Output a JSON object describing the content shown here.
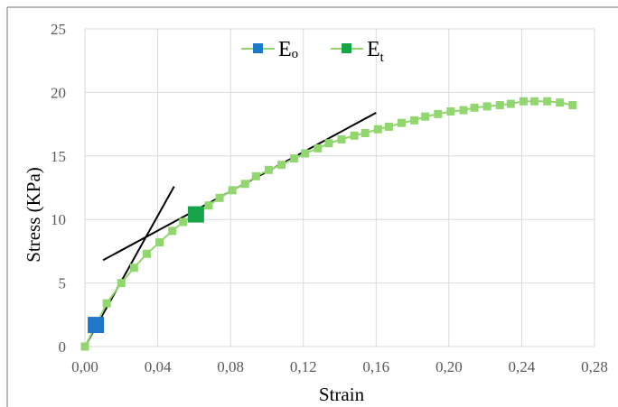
{
  "chart_data": {
    "type": "scatter",
    "xlabel": "Strain",
    "ylabel": "Stress (KPa)",
    "xlim": [
      0,
      0.28
    ],
    "ylim": [
      0,
      25
    ],
    "x_ticks": [
      "0,00",
      "0,04",
      "0,08",
      "0,12",
      "0,16",
      "0,20",
      "0,24",
      "0,28"
    ],
    "y_ticks": [
      "0",
      "5",
      "10",
      "15",
      "20",
      "25"
    ],
    "grid": true,
    "legend_position": "top-center",
    "series": [
      {
        "name_main": "E",
        "name_sub": "o",
        "color": "#1f77c8",
        "points": [
          [
            0.006,
            1.7
          ]
        ]
      },
      {
        "name_main": "E",
        "name_sub": "t",
        "color": "#17a34a",
        "points": [
          [
            0.061,
            10.4
          ]
        ]
      }
    ],
    "curve": {
      "color": "#92d66f",
      "points": [
        [
          0.0,
          0.0
        ],
        [
          0.012,
          3.4
        ],
        [
          0.02,
          5.0
        ],
        [
          0.027,
          6.2
        ],
        [
          0.034,
          7.3
        ],
        [
          0.041,
          8.2
        ],
        [
          0.048,
          9.1
        ],
        [
          0.054,
          9.8
        ],
        [
          0.061,
          10.4
        ],
        [
          0.068,
          11.1
        ],
        [
          0.074,
          11.7
        ],
        [
          0.081,
          12.3
        ],
        [
          0.088,
          12.8
        ],
        [
          0.094,
          13.4
        ],
        [
          0.101,
          13.9
        ],
        [
          0.108,
          14.3
        ],
        [
          0.115,
          14.8
        ],
        [
          0.121,
          15.2
        ],
        [
          0.128,
          15.6
        ],
        [
          0.134,
          16.0
        ],
        [
          0.141,
          16.3
        ],
        [
          0.148,
          16.6
        ],
        [
          0.154,
          16.8
        ],
        [
          0.161,
          17.1
        ],
        [
          0.167,
          17.3
        ],
        [
          0.174,
          17.6
        ],
        [
          0.181,
          17.8
        ],
        [
          0.187,
          18.1
        ],
        [
          0.194,
          18.3
        ],
        [
          0.201,
          18.5
        ],
        [
          0.208,
          18.6
        ],
        [
          0.214,
          18.8
        ],
        [
          0.221,
          18.9
        ],
        [
          0.228,
          19.0
        ],
        [
          0.234,
          19.1
        ],
        [
          0.241,
          19.3
        ],
        [
          0.247,
          19.3
        ],
        [
          0.254,
          19.3
        ],
        [
          0.261,
          19.2
        ],
        [
          0.268,
          19.0
        ]
      ]
    },
    "tangent_lines": [
      {
        "color": "#000000",
        "from": [
          0.0,
          0.0
        ],
        "to": [
          0.049,
          12.6
        ]
      },
      {
        "color": "#000000",
        "from": [
          0.01,
          6.8
        ],
        "to": [
          0.16,
          18.4
        ]
      }
    ]
  }
}
